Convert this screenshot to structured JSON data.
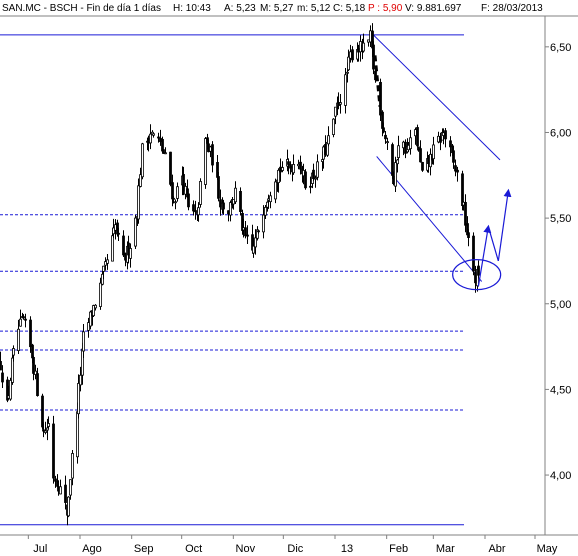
{
  "header": {
    "symbol": "SAN.MC - BSCH - Fin de día 1 días",
    "high": "H: 10:43",
    "open": "A: 5,23",
    "max": "M: 5,27",
    "min": "m: 5,12",
    "close": "C: 5,18",
    "price": "P : 5,90",
    "volume": "V: 9.881.697",
    "date": "F: 28/03/2013"
  },
  "colors": {
    "candle": "#000000",
    "trendline": "#1a1ad6",
    "background": "#ffffff",
    "price_red": "#e00000"
  },
  "chart_data": {
    "type": "candlestick",
    "title": "",
    "ylim": [
      3.65,
      6.68
    ],
    "y_ticks": [
      "6,50",
      "6,00",
      "5,50",
      "5,00",
      "4,50",
      "4,00"
    ],
    "y_tick_values": [
      6.5,
      6.0,
      5.5,
      5.0,
      4.5,
      4.0
    ],
    "x_ticks": [
      "Jul",
      "Ago",
      "Sep",
      "Oct",
      "Nov",
      "Dic",
      "13",
      "Feb",
      "Mar",
      "Abr",
      "May"
    ],
    "x_tick_dates": [
      "2012-07-01",
      "2012-08-01",
      "2012-09-01",
      "2012-10-01",
      "2012-11-01",
      "2012-12-01",
      "2013-01-01",
      "2013-02-01",
      "2013-03-01",
      "2013-04-01",
      "2013-05-01"
    ],
    "x_range": [
      "2012-06-14",
      "2013-05-07"
    ],
    "price_path": [
      [
        "2012-06-14",
        4.65
      ],
      [
        "2012-06-18",
        4.4
      ],
      [
        "2012-06-21",
        4.65
      ],
      [
        "2012-06-25",
        4.85
      ],
      [
        "2012-06-28",
        4.9
      ],
      [
        "2012-07-03",
        4.7
      ],
      [
        "2012-07-06",
        4.5
      ],
      [
        "2012-07-10",
        4.25
      ],
      [
        "2012-07-13",
        4.3
      ],
      [
        "2012-07-16",
        4.0
      ],
      [
        "2012-07-19",
        3.95
      ],
      [
        "2012-07-24",
        3.78
      ],
      [
        "2012-07-27",
        4.1
      ],
      [
        "2012-07-31",
        4.5
      ],
      [
        "2012-08-03",
        4.8
      ],
      [
        "2012-08-08",
        4.95
      ],
      [
        "2012-08-13",
        5.1
      ],
      [
        "2012-08-17",
        5.25
      ],
      [
        "2012-08-22",
        5.45
      ],
      [
        "2012-08-27",
        5.25
      ],
      [
        "2012-08-31",
        5.35
      ],
      [
        "2012-09-04",
        5.55
      ],
      [
        "2012-09-07",
        5.9
      ],
      [
        "2012-09-12",
        6.0
      ],
      [
        "2012-09-17",
        5.95
      ],
      [
        "2012-09-21",
        5.85
      ],
      [
        "2012-09-26",
        5.6
      ],
      [
        "2012-10-01",
        5.75
      ],
      [
        "2012-10-05",
        5.55
      ],
      [
        "2012-10-10",
        5.5
      ],
      [
        "2012-10-15",
        5.95
      ],
      [
        "2012-10-19",
        5.85
      ],
      [
        "2012-10-24",
        5.6
      ],
      [
        "2012-10-29",
        5.55
      ],
      [
        "2012-11-02",
        5.65
      ],
      [
        "2012-11-07",
        5.4
      ],
      [
        "2012-11-12",
        5.3
      ],
      [
        "2012-11-15",
        5.4
      ],
      [
        "2012-11-20",
        5.6
      ],
      [
        "2012-11-26",
        5.75
      ],
      [
        "2012-11-30",
        5.8
      ],
      [
        "2012-12-05",
        5.8
      ],
      [
        "2012-12-10",
        5.85
      ],
      [
        "2012-12-14",
        5.7
      ],
      [
        "2012-12-19",
        5.75
      ],
      [
        "2012-12-24",
        5.85
      ],
      [
        "2012-12-28",
        5.95
      ],
      [
        "2013-01-02",
        6.15
      ],
      [
        "2013-01-07",
        6.3
      ],
      [
        "2013-01-10",
        6.45
      ],
      [
        "2013-01-14",
        6.5
      ],
      [
        "2013-01-18",
        6.48
      ],
      [
        "2013-01-22",
        6.55
      ],
      [
        "2013-01-25",
        6.3
      ],
      [
        "2013-01-28",
        6.1
      ],
      [
        "2013-02-01",
        5.95
      ],
      [
        "2013-02-05",
        5.7
      ],
      [
        "2013-02-08",
        5.95
      ],
      [
        "2013-02-13",
        5.9
      ],
      [
        "2013-02-18",
        6.0
      ],
      [
        "2013-02-22",
        5.75
      ],
      [
        "2013-02-27",
        5.85
      ],
      [
        "2013-03-04",
        5.95
      ],
      [
        "2013-03-07",
        6.0
      ],
      [
        "2013-03-12",
        5.85
      ],
      [
        "2013-03-15",
        5.75
      ],
      [
        "2013-03-19",
        5.55
      ],
      [
        "2013-03-22",
        5.35
      ],
      [
        "2013-03-26",
        5.15
      ],
      [
        "2013-03-28",
        5.18
      ]
    ],
    "horizontal_levels_solid": [
      6.57,
      3.71
    ],
    "horizontal_levels_dashed": [
      5.52,
      5.19,
      4.84,
      4.73,
      4.38
    ],
    "channel_lines": [
      {
        "from": [
          "2013-01-24",
          6.57
        ],
        "to": [
          "2013-04-10",
          5.84
        ]
      },
      {
        "from": [
          "2013-01-26",
          5.86
        ],
        "to": [
          "2013-03-30",
          5.13
        ]
      }
    ],
    "gap_marker": {
      "from": [
        "2013-01-25",
        6.45
      ],
      "to": [
        "2013-01-28",
        6.15
      ]
    },
    "projection_arrows": [
      {
        "from": [
          "2013-03-28",
          5.1
        ],
        "to": [
          "2013-04-03",
          5.45
        ]
      },
      {
        "from": [
          "2013-04-03",
          5.45
        ],
        "to": [
          "2013-04-09",
          5.25
        ]
      },
      {
        "from": [
          "2013-04-09",
          5.25
        ],
        "to": [
          "2013-04-15",
          5.66
        ]
      }
    ],
    "highlight_ellipse": {
      "center": [
        "2013-03-27",
        5.17
      ]
    },
    "grid": false,
    "legend": "none"
  }
}
